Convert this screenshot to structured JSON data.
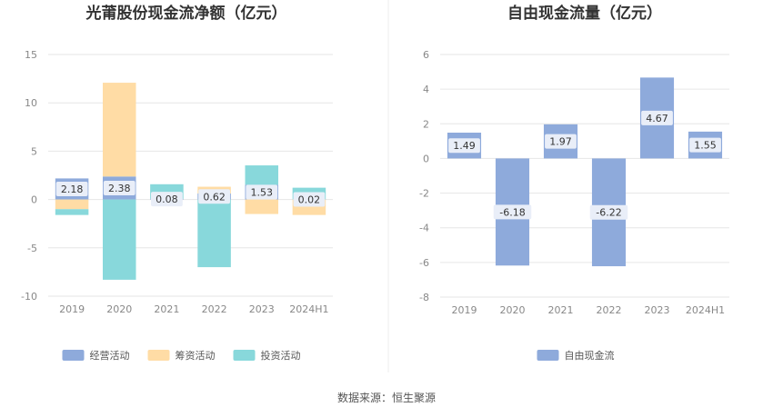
{
  "source_label": "数据来源：恒生聚源",
  "colors": {
    "operating": "#8eaadb",
    "financing": "#ffdca5",
    "investing": "#88d8db",
    "fcf": "#8eaadb",
    "grid": "#e6e6e6",
    "label_bg": "#e9eef8"
  },
  "chart_data": [
    {
      "type": "bar",
      "stacked": true,
      "title": "光莆股份现金流净额（亿元）",
      "categories": [
        "2019",
        "2020",
        "2021",
        "2022",
        "2023",
        "2024H1"
      ],
      "ylim": [
        -10,
        15
      ],
      "yticks": [
        15,
        10,
        5,
        0,
        -5,
        -10
      ],
      "grid": true,
      "legend_position": "bottom",
      "series": [
        {
          "name": "经营活动",
          "key": "operating",
          "values": [
            2.18,
            2.38,
            0.08,
            0.62,
            1.53,
            0.02
          ],
          "labeled": true
        },
        {
          "name": "筹资活动",
          "key": "financing",
          "values": [
            -1.0,
            9.7,
            0.0,
            0.7,
            -1.5,
            -1.6
          ]
        },
        {
          "name": "投资活动",
          "key": "investing",
          "values": [
            -0.6,
            -8.3,
            1.5,
            -7.0,
            2.0,
            1.2
          ]
        }
      ]
    },
    {
      "type": "bar",
      "title": "自由现金流量（亿元）",
      "categories": [
        "2019",
        "2020",
        "2021",
        "2022",
        "2023",
        "2024H1"
      ],
      "ylim": [
        -8,
        6
      ],
      "yticks": [
        6,
        4,
        2,
        0,
        -2,
        -4,
        -6,
        -8
      ],
      "grid": true,
      "legend_position": "bottom",
      "series": [
        {
          "name": "自由现金流",
          "key": "fcf",
          "values": [
            1.49,
            -6.18,
            1.97,
            -6.22,
            4.67,
            1.55
          ],
          "labeled": true
        }
      ]
    }
  ]
}
